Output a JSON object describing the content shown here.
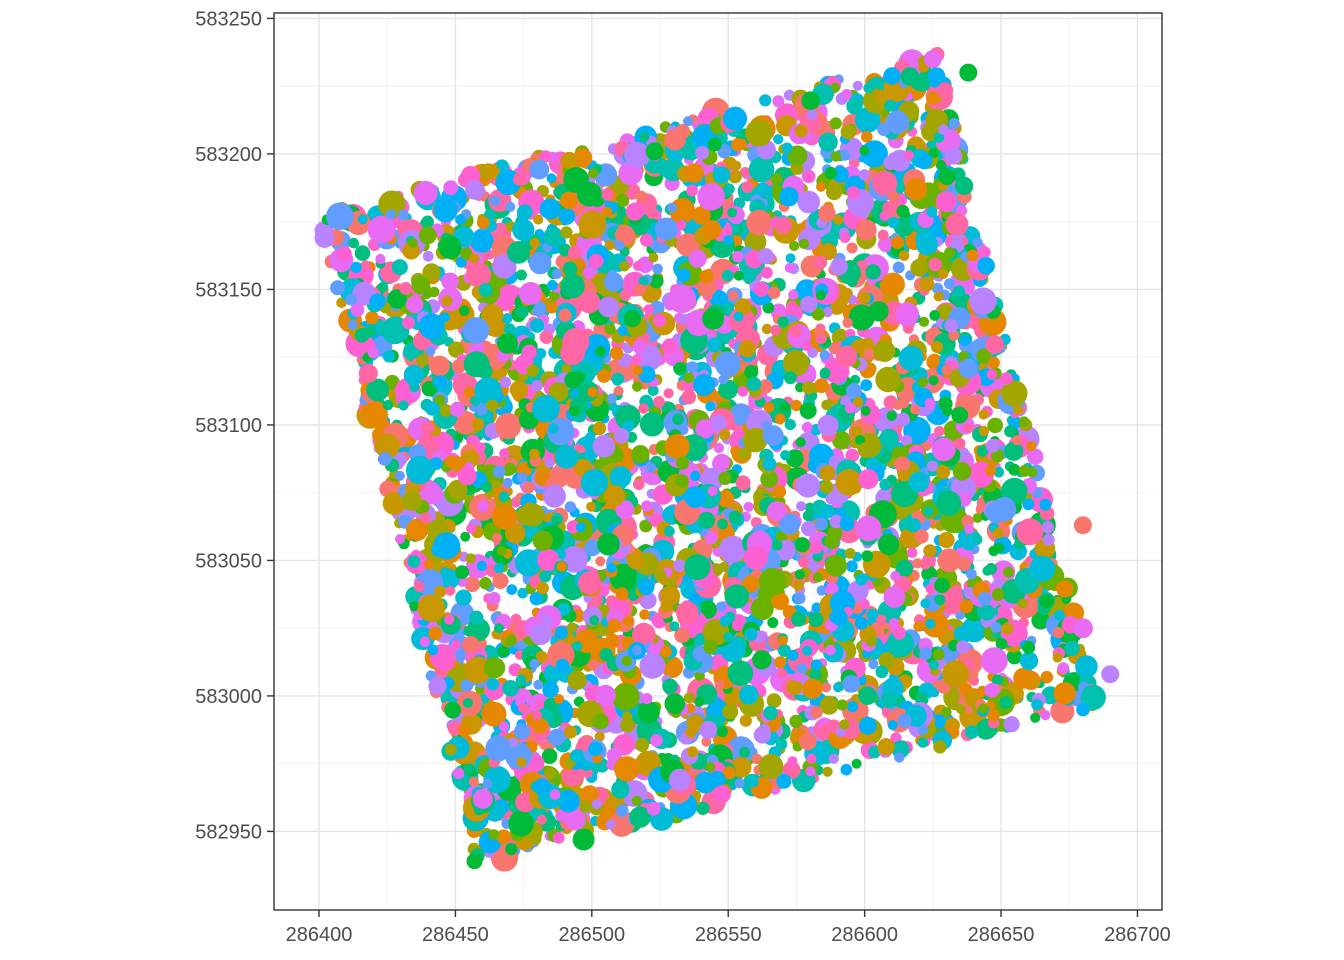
{
  "chart_data": {
    "type": "scatter",
    "title": "",
    "xlabel": "",
    "ylabel": "",
    "xlim": [
      286383.5,
      286709
    ],
    "ylim": [
      582921,
      583252
    ],
    "x_ticks": [
      286400,
      286450,
      286500,
      286550,
      286600,
      286650,
      286700
    ],
    "y_ticks": [
      582950,
      583000,
      583050,
      583100,
      583150,
      583200,
      583250
    ],
    "grid": true,
    "legend": "none",
    "plot_region_polygon": [
      [
        286400,
        583178
      ],
      [
        286627,
        583237
      ],
      [
        286695,
        583003
      ],
      [
        286458,
        582937
      ]
    ],
    "point_count_approx": 4200,
    "point_colors": [
      "#F8766D",
      "#E58700",
      "#C99800",
      "#A3A500",
      "#6BB100",
      "#00BA38",
      "#00BF7D",
      "#00C0AF",
      "#00BCD8",
      "#00B0F6",
      "#619CFF",
      "#B983FF",
      "#E76BF3",
      "#FD61D1",
      "#FF67A4"
    ],
    "sample_points": [
      {
        "x": 286497,
        "y": 582947,
        "size": 11,
        "color": "#00BA38"
      },
      {
        "x": 286457,
        "y": 582939,
        "size": 8,
        "color": "#00BA38"
      },
      {
        "x": 286638,
        "y": 583230,
        "size": 9,
        "color": "#00BA38"
      },
      {
        "x": 286523,
        "y": 583201,
        "size": 9,
        "color": "#00BA38"
      },
      {
        "x": 286680,
        "y": 583025,
        "size": 10,
        "color": "#E76BF3"
      },
      {
        "x": 286680,
        "y": 583063,
        "size": 9,
        "color": "#F8766D"
      },
      {
        "x": 286402,
        "y": 583169,
        "size": 10,
        "color": "#B983FF"
      },
      {
        "x": 286460,
        "y": 582962,
        "size": 10,
        "color": "#E76BF3"
      },
      {
        "x": 286434,
        "y": 583072,
        "size": 10,
        "color": "#A3A500"
      },
      {
        "x": 286625,
        "y": 583235,
        "size": 9,
        "color": "#E76BF3"
      },
      {
        "x": 286690,
        "y": 583008,
        "size": 9,
        "color": "#B983FF"
      }
    ]
  }
}
